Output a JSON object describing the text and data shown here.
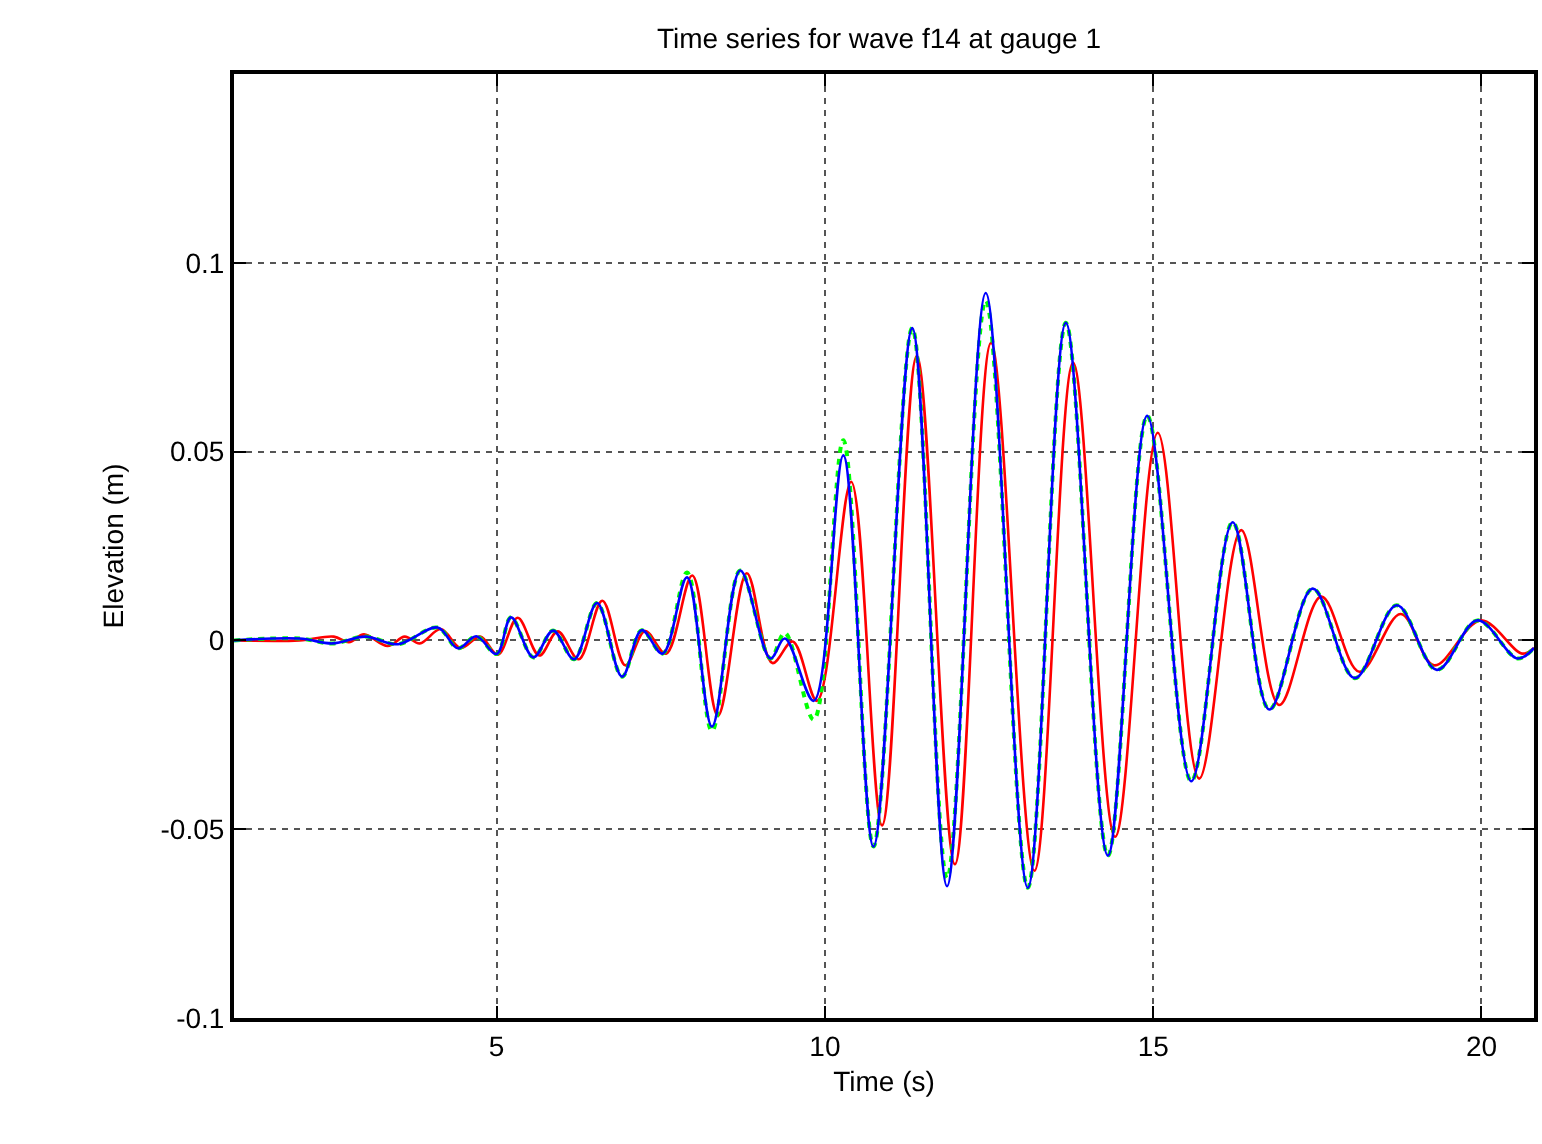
{
  "chart_data": {
    "type": "line",
    "title": "Time series for wave f14 at gauge 1",
    "xlabel": "Time (s)",
    "ylabel": "Elevation (m)",
    "xlim": [
      1,
      20.8
    ],
    "ylim": [
      -0.1,
      0.15
    ],
    "xticks": [
      5,
      10,
      15,
      20
    ],
    "yticks": [
      {
        "value": -0.1,
        "label": "-0.1"
      },
      {
        "value": -0.05,
        "label": "-0.05"
      },
      0,
      0.05,
      0.1
    ],
    "grid": true,
    "series": [
      {
        "color": "#ff0000",
        "line_style": "solid",
        "x": [
          1.0,
          2.0,
          2.52,
          2.75,
          2.98,
          3.34,
          3.6,
          3.83,
          4.15,
          4.45,
          4.75,
          5.02,
          5.32,
          5.65,
          5.93,
          6.25,
          6.61,
          6.96,
          7.26,
          7.58,
          7.98,
          8.37,
          8.81,
          9.2,
          9.51,
          9.88,
          10.4,
          10.87,
          11.4,
          11.98,
          12.53,
          13.19,
          13.78,
          14.42,
          15.07,
          15.7,
          16.34,
          16.92,
          17.56,
          18.14,
          18.77,
          19.28,
          19.99,
          20.62,
          20.8
        ],
        "values": [
          0,
          0,
          0.001,
          -0.0005,
          0.0016,
          -0.0015,
          0.001,
          -0.0008,
          0.003,
          -0.002,
          0.001,
          -0.0038,
          0.006,
          -0.004,
          0.0024,
          -0.005,
          0.0105,
          -0.0066,
          0.0025,
          -0.0035,
          0.0172,
          -0.02,
          0.0178,
          -0.006,
          -0.0003,
          -0.016,
          0.042,
          -0.049,
          0.0753,
          -0.0593,
          0.0788,
          -0.061,
          0.0735,
          -0.052,
          0.055,
          -0.0366,
          0.0292,
          -0.0171,
          0.0116,
          -0.0083,
          0.007,
          -0.0066,
          0.0053,
          -0.0035,
          -0.002
        ]
      },
      {
        "color": "#00ff00",
        "line_style": "dotted",
        "x": [
          1.0,
          2.0,
          2.5,
          3.0,
          3.5,
          4.1,
          4.41,
          4.69,
          5.0,
          5.22,
          5.56,
          5.86,
          6.18,
          6.53,
          6.91,
          7.21,
          7.53,
          7.9,
          8.28,
          8.71,
          9.17,
          9.39,
          9.83,
          10.28,
          10.74,
          11.33,
          11.86,
          12.45,
          13.09,
          13.67,
          14.31,
          14.91,
          15.58,
          16.21,
          16.77,
          17.43,
          18.07,
          18.71,
          19.32,
          19.94,
          20.55,
          20.8
        ],
        "values": [
          0,
          0.0005,
          -0.0008,
          0.001,
          -0.001,
          0.0034,
          -0.0021,
          0.0011,
          -0.0036,
          0.0061,
          -0.0045,
          0.0026,
          -0.005,
          0.0099,
          -0.0096,
          0.0027,
          -0.0035,
          0.018,
          -0.024,
          0.0185,
          -0.0048,
          0.002,
          -0.021,
          0.053,
          -0.0546,
          0.0827,
          -0.063,
          0.09,
          -0.0655,
          0.0841,
          -0.057,
          0.0595,
          -0.0373,
          0.0313,
          -0.0183,
          0.0137,
          -0.01,
          0.0093,
          -0.0078,
          0.0053,
          -0.0048,
          -0.002
        ]
      },
      {
        "color": "#0000ff",
        "line_style": "solid",
        "x": [
          1.0,
          2.0,
          2.5,
          3.0,
          3.5,
          4.1,
          4.41,
          4.69,
          5.0,
          5.22,
          5.56,
          5.86,
          6.18,
          6.53,
          6.91,
          7.21,
          7.53,
          7.9,
          8.28,
          8.71,
          9.17,
          9.39,
          9.83,
          10.28,
          10.74,
          11.33,
          11.86,
          12.45,
          13.09,
          13.67,
          14.31,
          14.91,
          15.58,
          16.21,
          16.77,
          17.43,
          18.07,
          18.71,
          19.32,
          19.94,
          20.55,
          20.8
        ],
        "values": [
          0,
          0.0005,
          -0.0008,
          0.001,
          -0.001,
          0.0034,
          -0.0021,
          0.0011,
          -0.0036,
          0.0061,
          -0.0045,
          0.0026,
          -0.005,
          0.0099,
          -0.0096,
          0.0027,
          -0.0035,
          0.0167,
          -0.0228,
          0.0185,
          -0.0048,
          0.0005,
          -0.016,
          0.049,
          -0.0546,
          0.0827,
          -0.0651,
          0.092,
          -0.0655,
          0.0841,
          -0.057,
          0.0595,
          -0.0373,
          0.0313,
          -0.0183,
          0.0137,
          -0.01,
          0.0093,
          -0.0078,
          0.0053,
          -0.0048,
          -0.002
        ]
      }
    ]
  }
}
